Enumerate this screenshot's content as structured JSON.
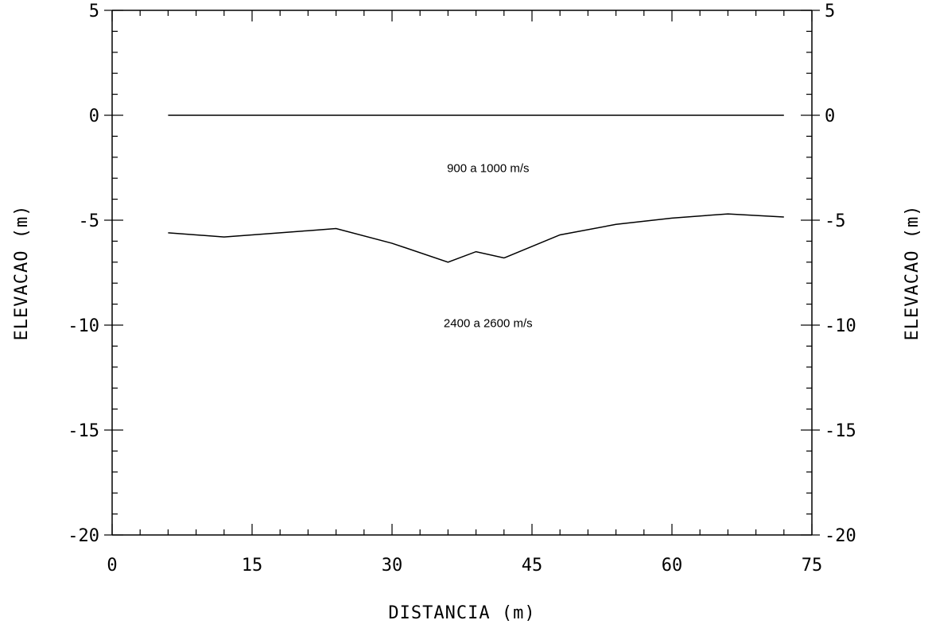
{
  "chart_data": {
    "type": "line",
    "title": "",
    "xlabel": "DISTANCIA (m)",
    "ylabel": "ELEVACAO (m)",
    "ylabel_right": "ELEVACAO (m)",
    "xlim": [
      0,
      75
    ],
    "ylim": [
      -20,
      5
    ],
    "x_ticks": [
      0,
      15,
      30,
      45,
      60,
      75
    ],
    "x_tick_labels": [
      "0",
      "15",
      "30",
      "45",
      "60",
      "75"
    ],
    "y_ticks": [
      5,
      0,
      -5,
      -10,
      -15,
      -20
    ],
    "y_tick_labels": [
      "5",
      "0",
      "-5",
      "-10",
      "-15",
      "-20"
    ],
    "x_minor_step": 3,
    "y_minor_step": 1,
    "grid": false,
    "legend": "none",
    "series": [
      {
        "x": [
          6,
          72
        ],
        "y": [
          0,
          0
        ]
      },
      {
        "x": [
          6,
          12,
          18,
          21,
          24,
          30,
          36,
          39,
          42,
          48,
          54,
          60,
          66,
          72
        ],
        "y": [
          -5.6,
          -5.8,
          -5.6,
          -5.5,
          -5.4,
          -6.1,
          -7.0,
          -6.5,
          -6.8,
          -5.7,
          -5.2,
          -4.9,
          -4.7,
          -4.85
        ]
      }
    ],
    "annotations": [
      {
        "text": "900 a 1000 m/s",
        "x": 42,
        "y": -2.7
      },
      {
        "text": "2400 a 2600 m/s",
        "x": 42,
        "y": -10.1
      }
    ]
  }
}
